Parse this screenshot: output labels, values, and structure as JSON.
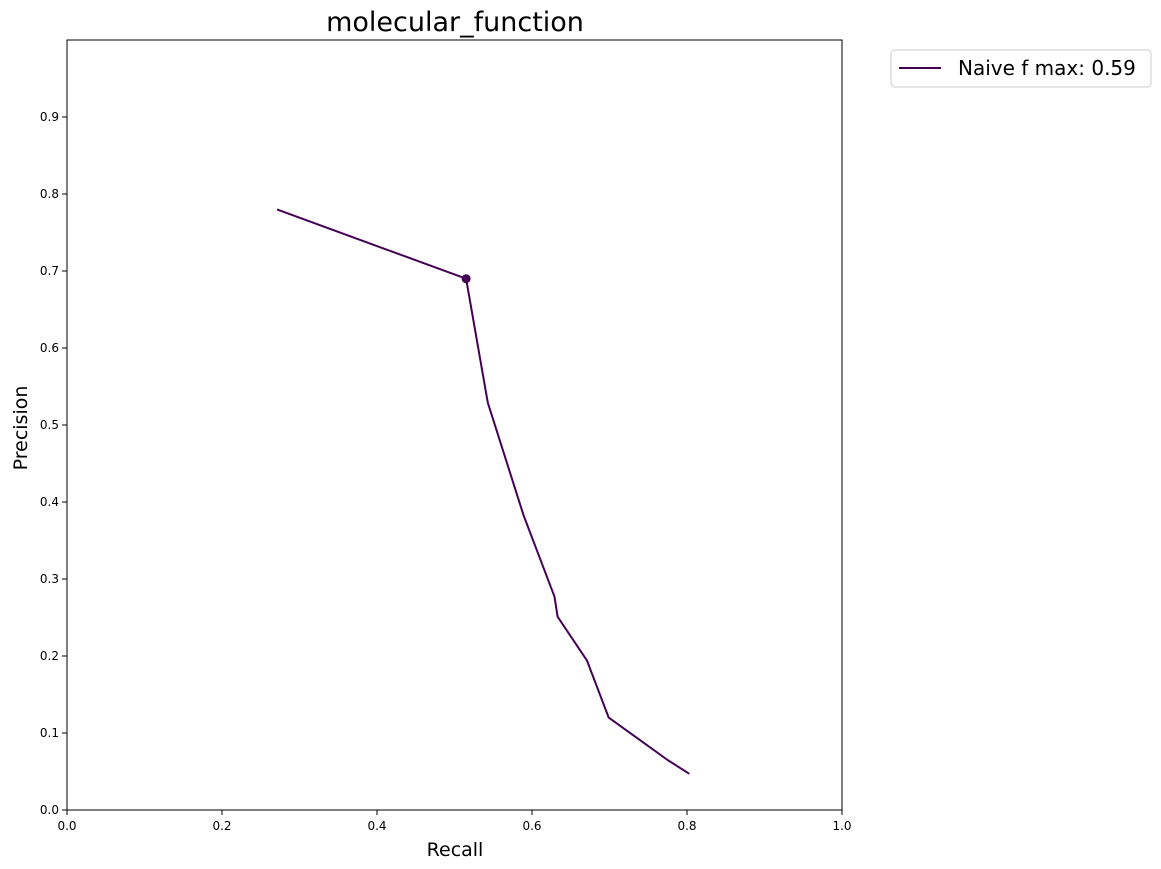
{
  "chart_data": {
    "type": "line",
    "title": "molecular_function",
    "xlabel": "Recall",
    "ylabel": "Precision",
    "xlim": [
      0.0,
      1.0
    ],
    "ylim": [
      0.0,
      1.0
    ],
    "x_ticks": [
      "0.0",
      "0.2",
      "0.4",
      "0.6",
      "0.8",
      "1.0"
    ],
    "y_ticks": [
      "0.0",
      "0.1",
      "0.2",
      "0.3",
      "0.4",
      "0.5",
      "0.6",
      "0.7",
      "0.8",
      "0.9"
    ],
    "grid": false,
    "legend_position": "outside-top-right",
    "series": [
      {
        "name": "Naive f max: 0.59",
        "color": "#440154",
        "x": [
          0.271,
          0.515,
          0.543,
          0.589,
          0.629,
          0.633,
          0.671,
          0.699,
          0.775,
          0.803
        ],
        "y": [
          0.78,
          0.69,
          0.529,
          0.383,
          0.277,
          0.251,
          0.194,
          0.12,
          0.065,
          0.047
        ],
        "marker": {
          "x": 0.515,
          "y": 0.69
        }
      }
    ]
  }
}
